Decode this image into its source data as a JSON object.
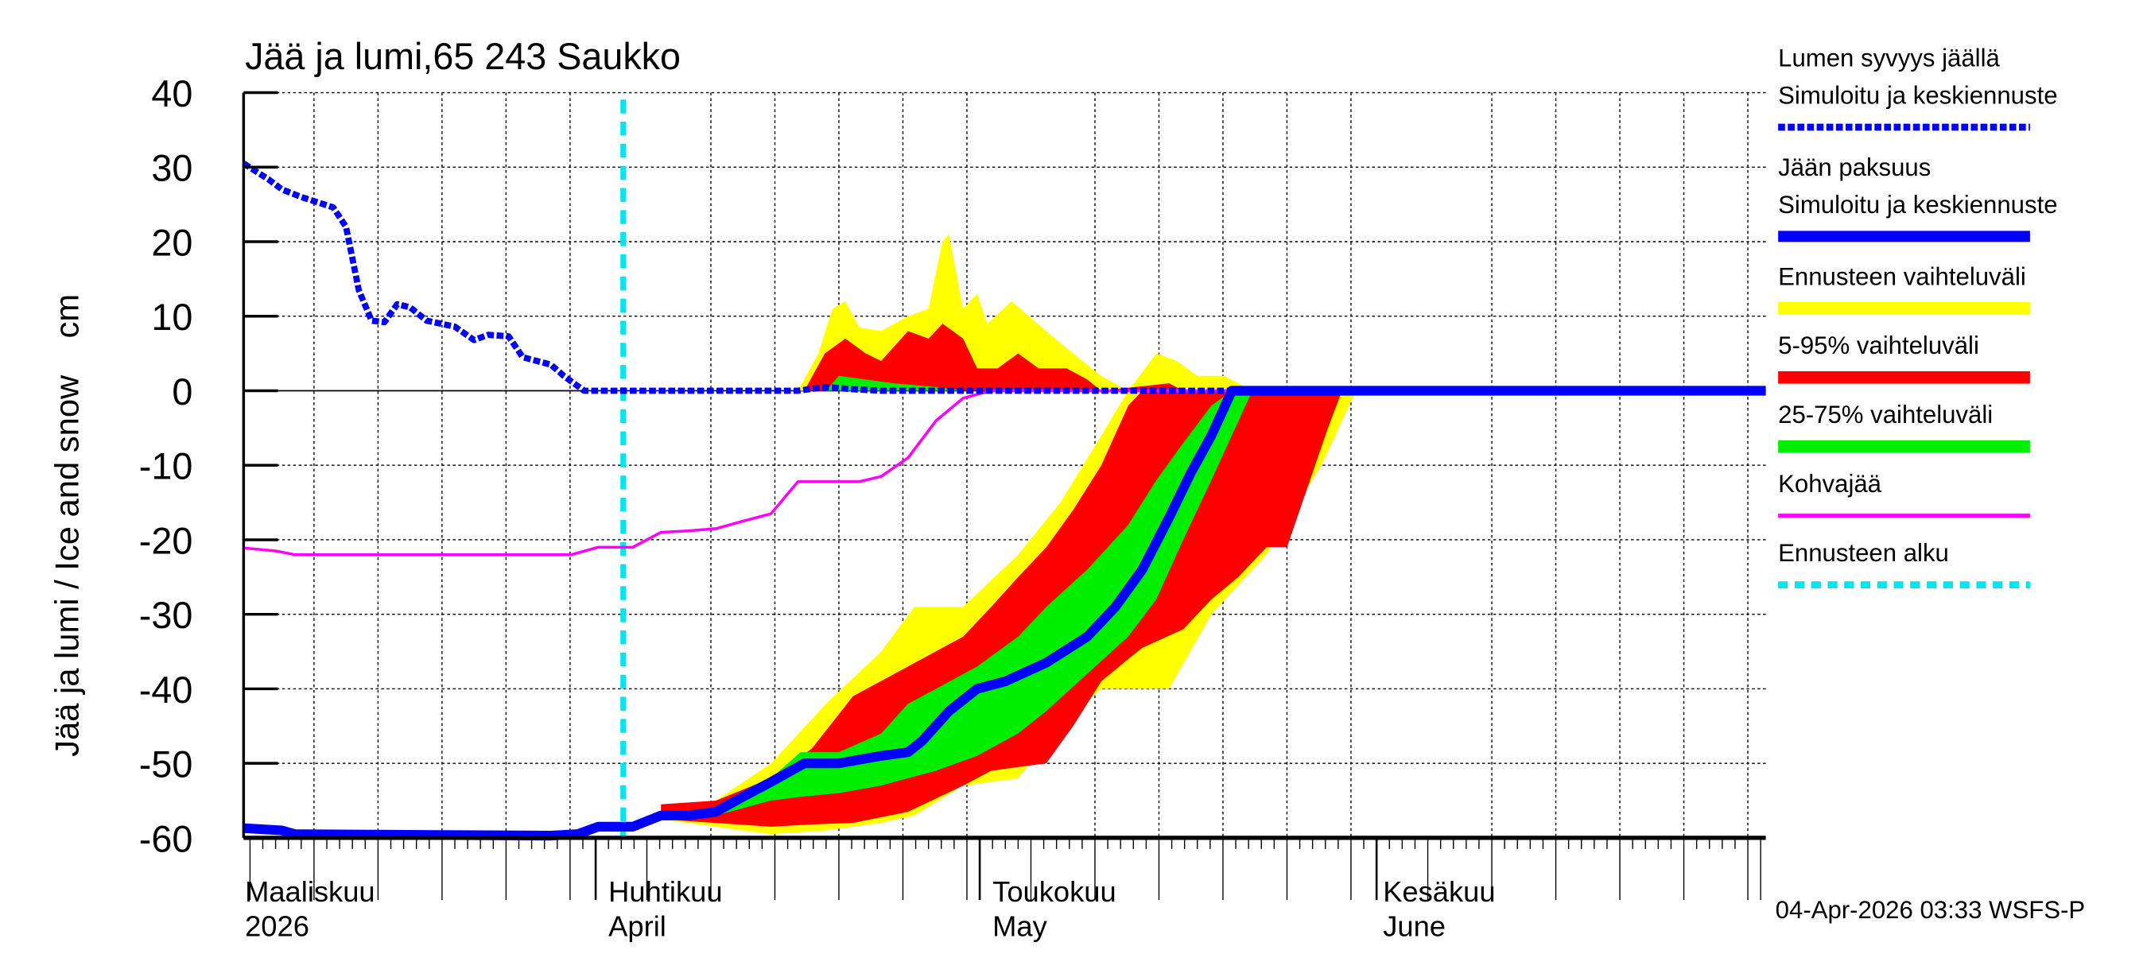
{
  "chart_data": {
    "type": "area",
    "title": "Jää ja lumi,65 243 Saukko",
    "ylabel": "Jää ja lumi / Ice and snow    cm",
    "xlabel": "",
    "x_units": "days since 2026-04-01",
    "xlim": [
      -27.5,
      91.4
    ],
    "ylim": [
      -60,
      40
    ],
    "yticks": [
      40,
      30,
      20,
      10,
      0,
      -10,
      -20,
      -30,
      -40,
      -50,
      -60
    ],
    "grid": true,
    "month_labels": [
      {
        "day": 0,
        "fi": "Maaliskuu",
        "en": "2026",
        "label_day": -27.5
      },
      {
        "day": 0,
        "fi": "Huhtikuu",
        "en": "April",
        "label_day": 1
      },
      {
        "day": 30,
        "fi": "Toukokuu",
        "en": "May",
        "label_day": 31
      },
      {
        "day": 61,
        "fi": "Kesäkuu",
        "en": "June",
        "label_day": 61.5
      }
    ],
    "forecast_start_day": 2.15,
    "bands": [
      {
        "name": "Ennusteen vaihteluväli (lumi)",
        "color": "#ffff00",
        "points": [
          [
            15.8,
            0,
            0
          ],
          [
            17.4,
            0,
            5
          ],
          [
            18.5,
            0,
            11
          ],
          [
            19.5,
            0,
            12
          ],
          [
            20.6,
            0,
            8.5
          ],
          [
            22.3,
            0,
            8
          ],
          [
            24.4,
            0,
            10
          ],
          [
            26,
            0,
            11
          ],
          [
            27.1,
            0,
            20
          ],
          [
            27.6,
            0,
            21
          ],
          [
            28.7,
            0,
            11
          ],
          [
            29.8,
            0,
            13
          ],
          [
            30.6,
            0,
            9
          ],
          [
            32.5,
            0,
            12
          ],
          [
            35.2,
            0,
            8
          ],
          [
            37.3,
            0,
            5
          ],
          [
            39.5,
            0,
            2
          ],
          [
            41.6,
            0,
            0
          ],
          [
            43.8,
            0,
            5
          ],
          [
            45.4,
            0,
            4
          ],
          [
            47,
            0,
            2
          ],
          [
            49.1,
            0,
            2
          ],
          [
            51.3,
            0,
            0
          ]
        ]
      },
      {
        "name": "5-95% vaihteluväli (lumi)",
        "color": "#ff0000",
        "points": [
          [
            16.3,
            0,
            0
          ],
          [
            17.9,
            0,
            5
          ],
          [
            19.5,
            0,
            7
          ],
          [
            21.1,
            0,
            5
          ],
          [
            22.3,
            0,
            4
          ],
          [
            24.4,
            0,
            8
          ],
          [
            26,
            0,
            7
          ],
          [
            27.1,
            0,
            9
          ],
          [
            28.7,
            0,
            7
          ],
          [
            29.8,
            0,
            3
          ],
          [
            31.4,
            0,
            3
          ],
          [
            33,
            0,
            5
          ],
          [
            34.6,
            0,
            3
          ],
          [
            36.8,
            0,
            3
          ],
          [
            38.4,
            0,
            1.5
          ],
          [
            39.5,
            0,
            0
          ],
          [
            44.8,
            0,
            1
          ],
          [
            45.9,
            0,
            0
          ]
        ]
      },
      {
        "name": "25-75% vaihteluväli (lumi)",
        "color": "#00ee00",
        "points": [
          [
            18,
            0,
            0
          ],
          [
            19,
            0,
            2
          ],
          [
            21.1,
            0,
            1.5
          ],
          [
            23.3,
            0,
            1
          ],
          [
            26.6,
            0,
            0.5
          ],
          [
            28.7,
            0,
            0
          ]
        ]
      },
      {
        "name": "Ennusteen vaihteluväli (jää)",
        "color": "#ffff00",
        "points": [
          [
            5.1,
            -57.5,
            -56
          ],
          [
            9.4,
            -58.5,
            -55
          ],
          [
            13.7,
            -59.5,
            -50
          ],
          [
            18,
            -59,
            -42
          ],
          [
            22.3,
            -58,
            -35
          ],
          [
            24.9,
            -57,
            -29
          ],
          [
            28.7,
            -53,
            -29
          ],
          [
            33,
            -52,
            -22
          ],
          [
            36.3,
            -45,
            -15
          ],
          [
            39.5,
            -40,
            -6
          ],
          [
            41.6,
            -40,
            0
          ],
          [
            44.8,
            -40,
            0
          ],
          [
            48.1,
            -30,
            0
          ],
          [
            52.4,
            -22,
            0
          ],
          [
            56.7,
            -10,
            0
          ],
          [
            59.4,
            0,
            0
          ]
        ]
      },
      {
        "name": "5-95% vaihteluväli (jää)",
        "color": "#ff0000",
        "points": [
          [
            5.1,
            -57.5,
            -55.5
          ],
          [
            9.4,
            -58,
            -55
          ],
          [
            13.7,
            -58.5,
            -52
          ],
          [
            16.9,
            -58.2,
            -48
          ],
          [
            20.1,
            -58,
            -41
          ],
          [
            24.4,
            -56.5,
            -37
          ],
          [
            28.7,
            -53,
            -33
          ],
          [
            30.9,
            -51,
            -29
          ],
          [
            33,
            -50.5,
            -25
          ],
          [
            35.2,
            -50,
            -21
          ],
          [
            37.3,
            -45,
            -16
          ],
          [
            39.5,
            -39,
            -10
          ],
          [
            41.6,
            -36,
            -2
          ],
          [
            42.7,
            -34.5,
            0
          ],
          [
            45.9,
            -32,
            0
          ],
          [
            48.1,
            -28,
            0
          ],
          [
            50.2,
            -25,
            0
          ],
          [
            52.4,
            -21,
            0
          ],
          [
            54,
            -21,
            0
          ],
          [
            55.6,
            -13,
            0
          ],
          [
            57.2,
            -5,
            0
          ],
          [
            58.3,
            0,
            0
          ]
        ]
      },
      {
        "name": "25-75% vaihteluväli (jää)",
        "color": "#00ee00",
        "points": [
          [
            9.4,
            -57,
            -56
          ],
          [
            13.7,
            -55,
            -52
          ],
          [
            16,
            -54.5,
            -48.5
          ],
          [
            19,
            -54,
            -48.5
          ],
          [
            22.3,
            -53,
            -46
          ],
          [
            24.4,
            -52,
            -42
          ],
          [
            26.6,
            -51,
            -40
          ],
          [
            29.8,
            -49,
            -37
          ],
          [
            33,
            -46,
            -33
          ],
          [
            35.2,
            -43,
            -29
          ],
          [
            38.4,
            -38,
            -24
          ],
          [
            41.6,
            -33,
            -18
          ],
          [
            43.8,
            -28,
            -12
          ],
          [
            45.9,
            -20,
            -7
          ],
          [
            48.1,
            -12,
            -2
          ],
          [
            49.7,
            -6,
            0
          ],
          [
            51.3,
            0,
            0
          ]
        ]
      }
    ],
    "series": [
      {
        "name": "Kohvajää",
        "color": "#ff00ff",
        "style": "solid",
        "points": [
          [
            -27.5,
            -21.1
          ],
          [
            -25,
            -21.5
          ],
          [
            -23.5,
            -22
          ],
          [
            -1.9,
            -22
          ],
          [
            0.2,
            -21
          ],
          [
            2.9,
            -21
          ],
          [
            5.1,
            -19
          ],
          [
            7.2,
            -18.8
          ],
          [
            9.4,
            -18.5
          ],
          [
            11.5,
            -17.5
          ],
          [
            13.7,
            -16.5
          ],
          [
            15.8,
            -12.2
          ],
          [
            20.6,
            -12.2
          ],
          [
            22.3,
            -11.5
          ],
          [
            24.4,
            -9
          ],
          [
            26.6,
            -4
          ],
          [
            28.7,
            -1
          ],
          [
            30.9,
            0
          ],
          [
            91.4,
            0
          ]
        ]
      },
      {
        "name": "Jään paksuus",
        "color": "#0000ff",
        "style": "thick",
        "points": [
          [
            -27.5,
            -58.7
          ],
          [
            -24.5,
            -59
          ],
          [
            -23.5,
            -59.5
          ],
          [
            -3.5,
            -59.7
          ],
          [
            -1.4,
            -59.5
          ],
          [
            0.2,
            -58.5
          ],
          [
            2.9,
            -58.5
          ],
          [
            5.1,
            -57
          ],
          [
            7.2,
            -57
          ],
          [
            9.4,
            -56.5
          ],
          [
            11.5,
            -54.5
          ],
          [
            13.7,
            -52.5
          ],
          [
            16.3,
            -50
          ],
          [
            19,
            -50
          ],
          [
            22.3,
            -49
          ],
          [
            24.4,
            -48.5
          ],
          [
            25.5,
            -47
          ],
          [
            27.6,
            -43
          ],
          [
            29.8,
            -40
          ],
          [
            32,
            -39
          ],
          [
            35.2,
            -36.5
          ],
          [
            38.4,
            -33
          ],
          [
            40.6,
            -29
          ],
          [
            42.7,
            -24
          ],
          [
            44.8,
            -17
          ],
          [
            46.5,
            -11
          ],
          [
            48.1,
            -6
          ],
          [
            49.7,
            0
          ],
          [
            91.4,
            0
          ]
        ]
      },
      {
        "name": "Lumen syvyys jäällä",
        "color": "#0000ff",
        "style": "dashed",
        "points": [
          [
            -27.5,
            30.5
          ],
          [
            -25.5,
            28.3
          ],
          [
            -24.5,
            27
          ],
          [
            -23,
            26
          ],
          [
            -20.5,
            24.6
          ],
          [
            -19.5,
            22
          ],
          [
            -18.5,
            13.5
          ],
          [
            -17.5,
            9.4
          ],
          [
            -16.5,
            9.2
          ],
          [
            -15.5,
            11.6
          ],
          [
            -14.5,
            11.2
          ],
          [
            -13.2,
            9.4
          ],
          [
            -11,
            8.6
          ],
          [
            -9.5,
            6.8
          ],
          [
            -8.4,
            7.5
          ],
          [
            -6.8,
            7.3
          ],
          [
            -5.7,
            4.5
          ],
          [
            -3.5,
            3.5
          ],
          [
            -2.5,
            2
          ],
          [
            -0.9,
            0
          ],
          [
            15.8,
            0
          ],
          [
            18,
            0.5
          ],
          [
            20.1,
            0.2
          ],
          [
            22.3,
            0
          ],
          [
            91.4,
            0
          ]
        ]
      }
    ],
    "legend": {
      "placement": "right",
      "items": [
        {
          "line1": "Lumen syvyys jäällä",
          "line2": "Simuloitu ja keskiennuste",
          "color": "#0000ff",
          "style": "dashed"
        },
        {
          "line1": "Jään paksuus",
          "line2": "Simuloitu ja keskiennuste",
          "color": "#0000ff",
          "style": "thick"
        },
        {
          "line1": "Ennusteen vaihteluväli",
          "color": "#ffff00",
          "style": "band"
        },
        {
          "line1": "5-95% vaihteluväli",
          "color": "#ff0000",
          "style": "band"
        },
        {
          "line1": "25-75% vaihteluväli",
          "color": "#00ee00",
          "style": "band"
        },
        {
          "line1": "Kohvajää",
          "color": "#ff00ff",
          "style": "thin"
        },
        {
          "line1": "Ennusteen alku",
          "color": "#00e5ee",
          "style": "dotted"
        }
      ]
    },
    "footer": "04-Apr-2026 03:33 WSFS-P"
  }
}
